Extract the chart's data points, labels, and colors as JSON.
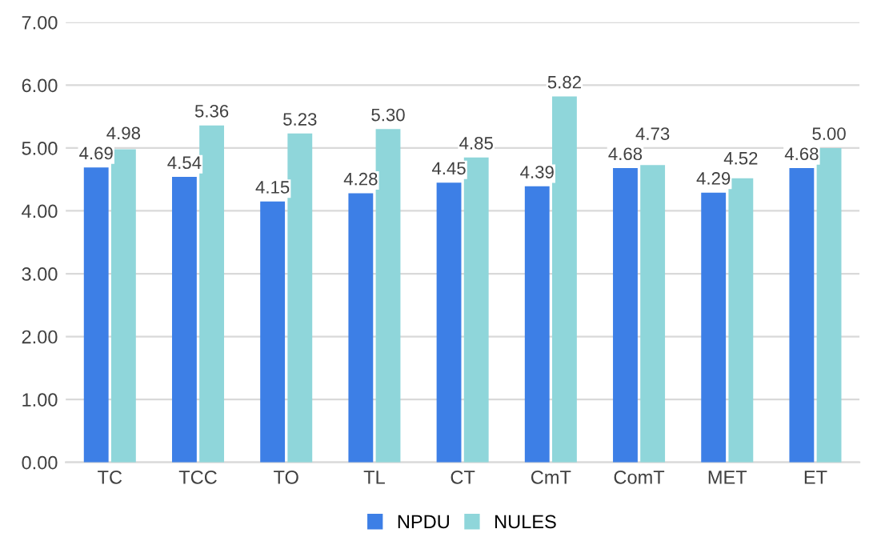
{
  "chart_data": {
    "type": "bar",
    "categories": [
      "TC",
      "TCC",
      "TO",
      "TL",
      "CT",
      "CmT",
      "ComT",
      "MET",
      "ET"
    ],
    "series": [
      {
        "name": "NPDU",
        "color": "#3d7fe6",
        "values": [
          4.69,
          4.54,
          4.15,
          4.28,
          4.45,
          4.39,
          4.68,
          4.29,
          4.68
        ],
        "value_labels": [
          "4.69",
          "4.54",
          "4.15",
          "4.28",
          "4.45",
          "4.39",
          "4.68",
          "4.29",
          "4.68"
        ]
      },
      {
        "name": "NULES",
        "color": "#8fd6da",
        "values": [
          4.98,
          5.36,
          5.23,
          5.3,
          4.85,
          5.82,
          4.73,
          4.52,
          5.0
        ],
        "value_labels": [
          "4.98",
          "5.36",
          "5.23",
          "5.30",
          "4.85",
          "5.82",
          "4.73",
          "4.52",
          "5.00"
        ]
      }
    ],
    "ylim": [
      0,
      7
    ],
    "yticks": [
      {
        "value": 0,
        "label": "0.00"
      },
      {
        "value": 1,
        "label": "1.00"
      },
      {
        "value": 2,
        "label": "2.00"
      },
      {
        "value": 3,
        "label": "3.00"
      },
      {
        "value": 4,
        "label": "4.00"
      },
      {
        "value": 5,
        "label": "5.00"
      },
      {
        "value": 6,
        "label": "6.00"
      },
      {
        "value": 7,
        "label": "7.00"
      }
    ],
    "grid": "y",
    "legend": "bottom"
  }
}
